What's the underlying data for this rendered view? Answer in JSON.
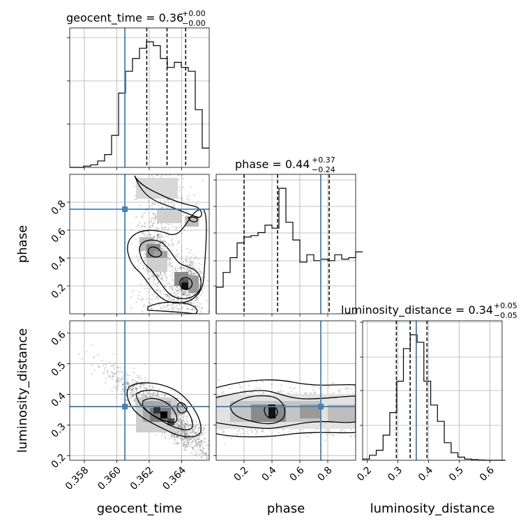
{
  "chart_data": {
    "type": "corner",
    "parameters": [
      "geocent_time",
      "phase",
      "luminosity_distance"
    ],
    "truths": {
      "geocent_time": 0.3605,
      "phase": 0.75,
      "luminosity_distance": 0.36
    },
    "truth_color": "#4682b4",
    "titles": {
      "geocent_time": {
        "name": "geocent_time",
        "value": "0.36",
        "plus": "+0.00",
        "minus": "−0.00"
      },
      "phase": {
        "name": "phase",
        "value": "0.44",
        "plus": "+0.37",
        "minus": "−0.24"
      },
      "luminosity_distance": {
        "name": "luminosity_distance",
        "value": "0.34",
        "plus": "+0.05",
        "minus": "−0.05"
      }
    },
    "quantiles": {
      "geocent_time": [
        0.36185,
        0.3631,
        0.36425
      ],
      "phase": [
        0.2,
        0.44,
        0.81
      ],
      "luminosity_distance": [
        0.295,
        0.34,
        0.395
      ]
    },
    "axis_ranges": {
      "geocent_time": [
        0.3571,
        0.3657
      ],
      "phase": [
        0.0,
        1.0
      ],
      "luminosity_distance": [
        0.185,
        0.64
      ]
    },
    "ticks": {
      "geocent_time": [
        "0.358",
        "0.360",
        "0.362",
        "0.364"
      ],
      "phase": [
        "0.2",
        "0.4",
        "0.6",
        "0.8"
      ],
      "luminosity_distance_y": [
        "0.2",
        "0.3",
        "0.4",
        "0.5",
        "0.6"
      ],
      "luminosity_distance_x": [
        "0.2",
        "0.3",
        "0.4",
        "0.5",
        "0.6"
      ]
    },
    "histograms": {
      "geocent_time": {
        "edges_start": 0.3571,
        "bin_width": 0.00043,
        "counts": [
          0,
          0,
          0.01,
          0.02,
          0.05,
          0.1,
          0.25,
          0.58,
          0.75,
          0.85,
          0.93,
          0.98,
          0.95,
          0.85,
          0.78,
          0.82,
          0.78,
          0.75,
          0.45,
          0.15
        ]
      },
      "phase": {
        "edges_start": 0.0,
        "bin_width": 0.05,
        "counts": [
          0.18,
          0.28,
          0.38,
          0.48,
          0.52,
          0.53,
          0.55,
          0.6,
          0.58,
          0.85,
          0.62,
          0.5,
          0.35,
          0.4,
          0.36,
          0.37,
          0.36,
          0.4,
          0.37,
          0.38,
          0.42
        ]
      },
      "luminosity_distance": {
        "edges_start": 0.185,
        "bin_width": 0.0222,
        "counts": [
          0.01,
          0.04,
          0.08,
          0.2,
          0.38,
          0.63,
          0.89,
          1.0,
          0.94,
          0.63,
          0.44,
          0.31,
          0.14,
          0.06,
          0.025,
          0.01,
          0.005,
          0.002,
          0.0,
          0.0,
          0.0
        ]
      }
    },
    "grid": true
  }
}
